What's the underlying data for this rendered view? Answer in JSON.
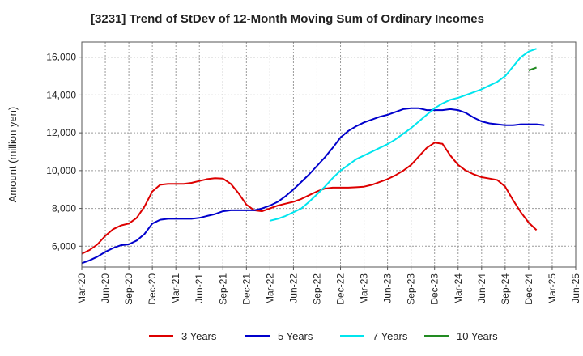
{
  "chart_data": {
    "type": "line",
    "title": "[3231]  Trend of StDev of 12-Month Moving Sum of Ordinary Incomes",
    "xlabel": "",
    "ylabel": "Amount (million yen)",
    "x_ticks": [
      "Mar-20",
      "Jun-20",
      "Sep-20",
      "Dec-20",
      "Mar-21",
      "Jun-21",
      "Sep-21",
      "Dec-21",
      "Mar-22",
      "Jun-22",
      "Sep-22",
      "Dec-22",
      "Mar-23",
      "Jun-23",
      "Sep-23",
      "Dec-23",
      "Mar-24",
      "Jun-24",
      "Sep-24",
      "Dec-24",
      "Mar-25",
      "Jun-25"
    ],
    "y_ticks": [
      6000,
      8000,
      10000,
      12000,
      14000,
      16000
    ],
    "y_tick_labels": [
      "6,000",
      "8,000",
      "10,000",
      "12,000",
      "14,000",
      "16,000"
    ],
    "ylim": [
      4900,
      16800
    ],
    "xlim_months": [
      0,
      63
    ],
    "grid": true,
    "legend_position": "bottom",
    "series": [
      {
        "name": "3 Years",
        "color": "#dd0000",
        "start_month": 0,
        "values": [
          5600,
          5800,
          6100,
          6550,
          6900,
          7100,
          7200,
          7500,
          8100,
          8900,
          9250,
          9300,
          9300,
          9300,
          9350,
          9450,
          9550,
          9600,
          9580,
          9300,
          8800,
          8200,
          7900,
          7850,
          8000,
          8150,
          8250,
          8350,
          8500,
          8700,
          8900,
          9050,
          9100,
          9100,
          9100,
          9120,
          9150,
          9250,
          9400,
          9550,
          9750,
          10000,
          10300,
          10750,
          11200,
          11480,
          11420,
          10800,
          10300,
          10000,
          9800,
          9650,
          9580,
          9500,
          9150,
          8450,
          7800,
          7250,
          6850
        ]
      },
      {
        "name": "5 Years",
        "color": "#0000cc",
        "start_month": 0,
        "values": [
          5100,
          5250,
          5450,
          5700,
          5900,
          6050,
          6100,
          6300,
          6650,
          7200,
          7400,
          7450,
          7450,
          7450,
          7450,
          7500,
          7600,
          7700,
          7850,
          7900,
          7900,
          7900,
          7900,
          8000,
          8150,
          8350,
          8650,
          9000,
          9400,
          9800,
          10250,
          10700,
          11200,
          11750,
          12100,
          12350,
          12550,
          12700,
          12850,
          12950,
          13100,
          13250,
          13300,
          13300,
          13200,
          13200,
          13200,
          13250,
          13200,
          13050,
          12800,
          12600,
          12500,
          12450,
          12400,
          12400,
          12450,
          12450,
          12450,
          12400
        ]
      },
      {
        "name": "7 Years",
        "color": "#00e5ee",
        "start_month": 24,
        "values": [
          7350,
          7450,
          7600,
          7800,
          8000,
          8350,
          8750,
          9150,
          9600,
          10000,
          10300,
          10600,
          10800,
          11000,
          11200,
          11400,
          11650,
          11950,
          12250,
          12600,
          12950,
          13300,
          13550,
          13750,
          13850,
          14000,
          14150,
          14300,
          14500,
          14700,
          15000,
          15500,
          16000,
          16300,
          16450
        ]
      },
      {
        "name": "10 Years",
        "color": "#228b22",
        "start_month": 57,
        "values": [
          15300,
          15450
        ]
      }
    ]
  }
}
